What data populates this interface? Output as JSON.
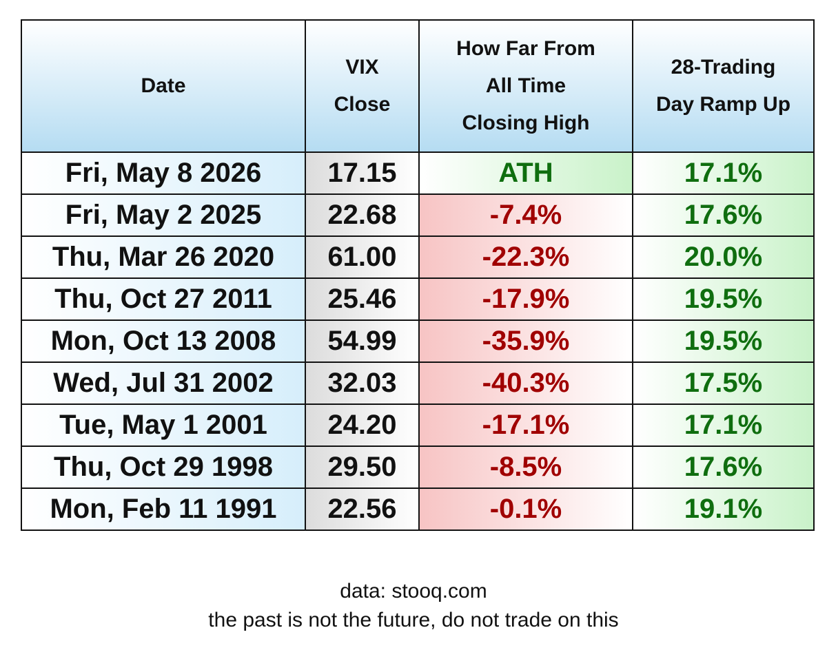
{
  "table": {
    "header": [
      "Date",
      "VIX\nClose",
      "How Far From\nAll Time\nClosing High",
      "28-Trading\nDay Ramp Up"
    ],
    "rows": [
      [
        "Fri, May 8 2026",
        "17.15",
        "ATH",
        "17.1%"
      ],
      [
        "Fri, May 2 2025",
        "22.68",
        "-7.4%",
        "17.6%"
      ],
      [
        "Thu, Mar 26 2020",
        "61.00",
        "-22.3%",
        "20.0%"
      ],
      [
        "Thu, Oct 27 2011",
        "25.46",
        "-17.9%",
        "19.5%"
      ],
      [
        "Mon, Oct 13 2008",
        "54.99",
        "-35.9%",
        "19.5%"
      ],
      [
        "Wed, Jul 31 2002",
        "32.03",
        "-40.3%",
        "17.5%"
      ],
      [
        "Tue, May 1 2001",
        "24.20",
        "-17.1%",
        "17.1%"
      ],
      [
        "Thu, Oct 29 1998",
        "29.50",
        "-8.5%",
        "17.6%"
      ],
      [
        "Mon, Feb 11 1991",
        "22.56",
        "-0.1%",
        "19.1%"
      ]
    ]
  },
  "footer": {
    "source": "data: stooq.com",
    "disclaimer": "the past is not the future, do not trade on this"
  }
}
